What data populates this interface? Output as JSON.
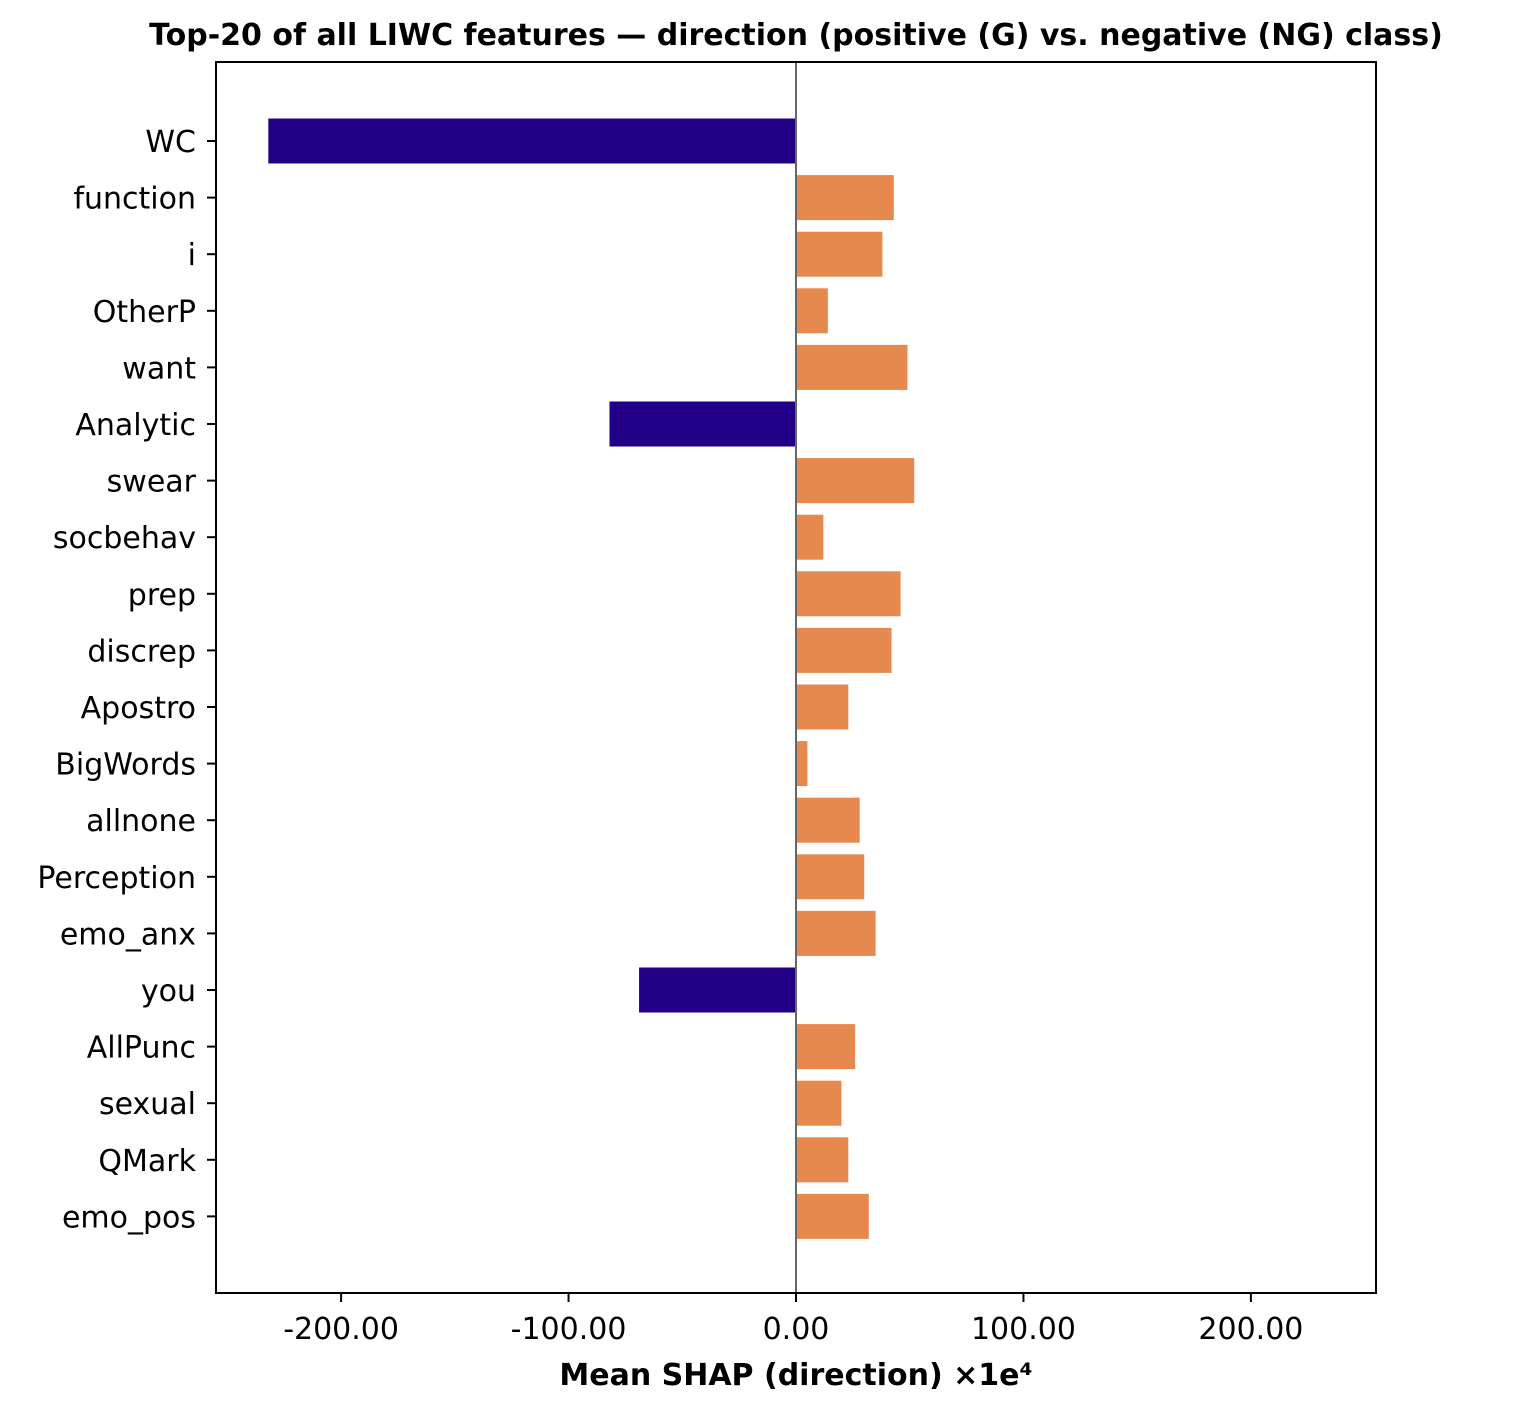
{
  "chart_data": {
    "type": "bar",
    "orientation": "horizontal",
    "title": "Top-20 of all LIWC features — direction (positive (G) vs. negative (NG) class)",
    "xlabel": "Mean SHAP (direction) ×1e⁴",
    "ylabel": "",
    "xlim": [
      -255,
      255
    ],
    "xticks": [
      -200,
      -100,
      0,
      100,
      200
    ],
    "xtick_labels": [
      "-200.00",
      "-100.00",
      "0.00",
      "100.00",
      "200.00"
    ],
    "grid": false,
    "legend": "none",
    "colors": {
      "positive": "#E6894E",
      "negative": "#220085",
      "zero_line": "#666666"
    },
    "categories": [
      "WC",
      "function",
      "i",
      "OtherP",
      "want",
      "Analytic",
      "swear",
      "socbehav",
      "prep",
      "discrep",
      "Apostro",
      "BigWords",
      "allnone",
      "Perception",
      "emo_anx",
      "you",
      "AllPunc",
      "sexual",
      "QMark",
      "emo_pos"
    ],
    "values": [
      -232,
      43,
      38,
      14,
      49,
      -82,
      52,
      12,
      46,
      42,
      23,
      5,
      28,
      30,
      35,
      -69,
      26,
      20,
      23,
      32
    ]
  }
}
